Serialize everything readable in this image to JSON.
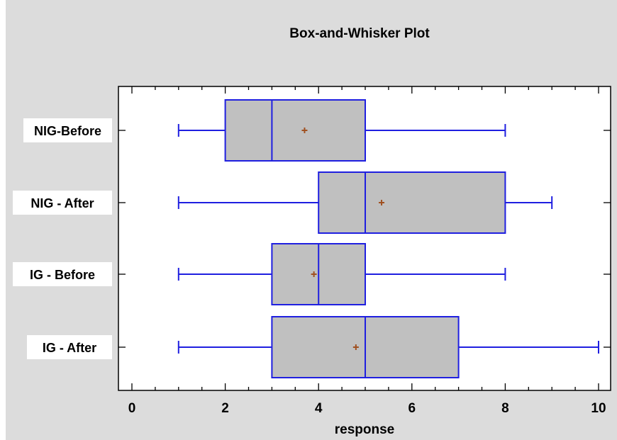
{
  "chart_data": {
    "type": "boxplot",
    "title": "Box-and-Whisker Plot",
    "xlabel": "response",
    "xlim": [
      0,
      10
    ],
    "xticks": [
      0,
      2,
      4,
      6,
      8,
      10
    ],
    "orientation": "horizontal",
    "colors": {
      "background": "#dcdcdc",
      "plot_area": "#ffffff",
      "box_fill": "#c0c0c0",
      "box_stroke": "#1f1fe0",
      "mean_marker": "#a05020"
    },
    "series": [
      {
        "label": "NIG-Before",
        "min": 1,
        "q1": 2,
        "median": 3,
        "q3": 5,
        "max": 8,
        "mean": 3.7
      },
      {
        "label": "NIG - After",
        "min": 1,
        "q1": 4,
        "median": 5,
        "q3": 8,
        "max": 9,
        "mean": 5.35
      },
      {
        "label": "IG - Before",
        "min": 1,
        "q1": 3,
        "median": 4,
        "q3": 5,
        "max": 8,
        "mean": 3.9
      },
      {
        "label": "IG - After",
        "min": 1,
        "q1": 3,
        "median": 5,
        "q3": 7,
        "max": 10,
        "mean": 4.8
      }
    ]
  }
}
